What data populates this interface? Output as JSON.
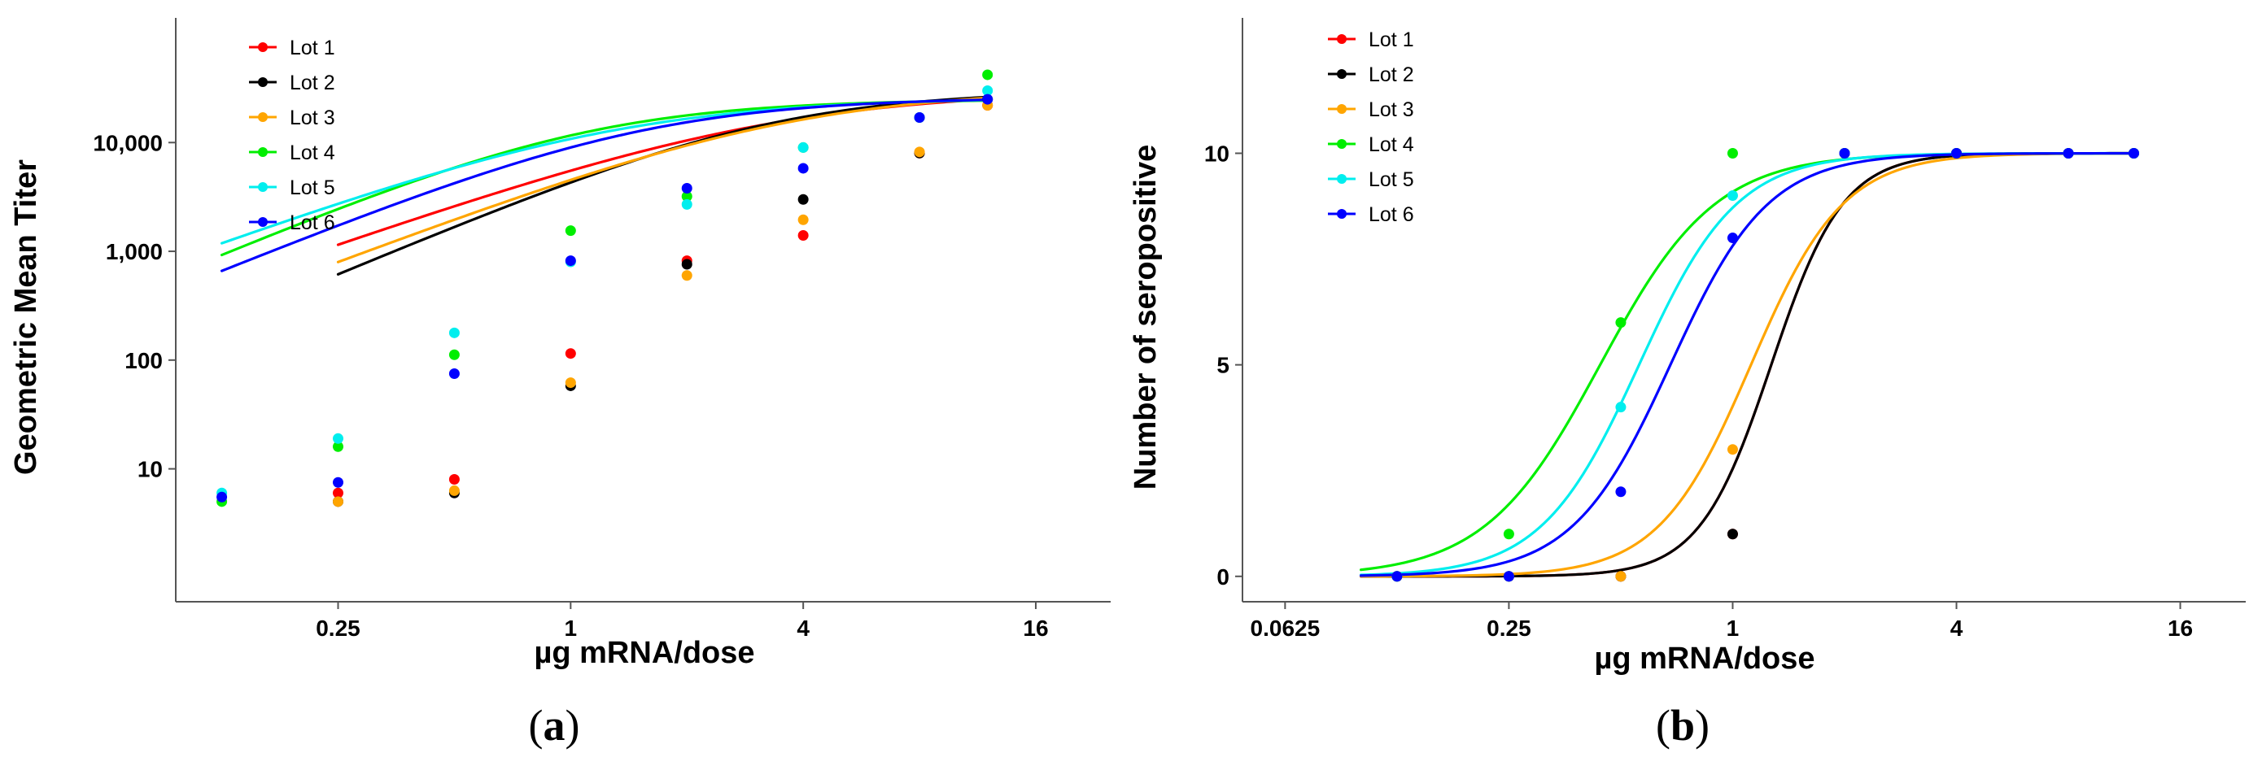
{
  "series_colors": {
    "Lot 1": "#ff0000",
    "Lot 2": "#000000",
    "Lot 3": "#ffa500",
    "Lot 4": "#00ee00",
    "Lot 5": "#00eeee",
    "Lot 6": "#0000ff"
  },
  "chart_data": [
    {
      "panel": "a",
      "panel_label_open": "(",
      "panel_label_letter": "a",
      "panel_label_close": ")",
      "type": "line",
      "xscale": "log2",
      "yscale": "log10",
      "xlabel": "µg mRNA/dose",
      "ylabel": "Geometric Mean Titer",
      "xlim": [
        0.095,
        25
      ],
      "ylim": [
        0.6,
        140000
      ],
      "xticks": [
        0.25,
        1,
        4,
        16
      ],
      "xtick_labels": [
        "0.25",
        "1",
        "4",
        "16"
      ],
      "yticks": [
        10,
        100,
        1000,
        10000
      ],
      "ytick_labels": [
        "10",
        "100",
        "1,000",
        "10,000"
      ],
      "legend": [
        "Lot 1",
        "Lot 2",
        "Lot 3",
        "Lot 4",
        "Lot 5",
        "Lot 6"
      ],
      "series": [
        {
          "name": "Lot 1",
          "points": [
            [
              0.25,
              6
            ],
            [
              0.5,
              8
            ],
            [
              1,
              115
            ],
            [
              2,
              820
            ],
            [
              4,
              1400
            ],
            [
              8,
              8000
            ],
            [
              12,
              22000
            ]
          ],
          "curve": {
            "bottom": 2.5,
            "top": 30000,
            "ec50": 3.3,
            "hill": 1.25
          }
        },
        {
          "name": "Lot 2",
          "points": [
            [
              0.25,
              5
            ],
            [
              0.5,
              6
            ],
            [
              1,
              58
            ],
            [
              2,
              760
            ],
            [
              4,
              3000
            ],
            [
              8,
              8000
            ],
            [
              12,
              25000
            ]
          ],
          "curve": {
            "bottom": 1.8,
            "top": 30000,
            "ec50": 3.3,
            "hill": 1.5
          }
        },
        {
          "name": "Lot 3",
          "points": [
            [
              0.25,
              5
            ],
            [
              0.5,
              6.3
            ],
            [
              1,
              62
            ],
            [
              2,
              600
            ],
            [
              4,
              1950
            ],
            [
              8,
              8200
            ],
            [
              12,
              22000
            ]
          ],
          "curve": {
            "bottom": 2.1,
            "top": 31000,
            "ec50": 3.7,
            "hill": 1.35
          }
        },
        {
          "name": "Lot 4",
          "points": [
            [
              0.125,
              5
            ],
            [
              0.25,
              16
            ],
            [
              0.5,
              112
            ],
            [
              1,
              1550
            ],
            [
              2,
              3200
            ],
            [
              4,
              9000
            ],
            [
              8,
              17000
            ],
            [
              12,
              42000
            ]
          ],
          "curve": {
            "bottom": 3,
            "top": 25000,
            "ec50": 1.1,
            "hill": 1.5
          }
        },
        {
          "name": "Lot 5",
          "points": [
            [
              0.125,
              6
            ],
            [
              0.25,
              19
            ],
            [
              0.5,
              178
            ],
            [
              1,
              800
            ],
            [
              2,
              2700
            ],
            [
              4,
              9000
            ],
            [
              8,
              17000
            ],
            [
              12,
              30000
            ]
          ],
          "curve": {
            "bottom": 4,
            "top": 26000,
            "ec50": 1.3,
            "hill": 1.3
          }
        },
        {
          "name": "Lot 6",
          "points": [
            [
              0.125,
              5.5
            ],
            [
              0.25,
              7.5
            ],
            [
              0.5,
              75
            ],
            [
              1,
              820
            ],
            [
              2,
              3800
            ],
            [
              4,
              5800
            ],
            [
              8,
              17000
            ],
            [
              12,
              25000
            ]
          ],
          "curve": {
            "bottom": 2.5,
            "top": 26000,
            "ec50": 1.55,
            "hill": 1.45
          }
        }
      ]
    },
    {
      "panel": "b",
      "panel_label_open": "(",
      "panel_label_letter": "b",
      "panel_label_close": ")",
      "type": "line",
      "xscale": "log2",
      "yscale": "linear",
      "xlabel": "µg mRNA/dose",
      "ylabel": "Number of seropositive",
      "xlim": [
        0.048,
        24
      ],
      "ylim": [
        -0.6,
        13.2
      ],
      "xticks": [
        0.0625,
        0.25,
        1,
        4,
        16
      ],
      "xtick_labels": [
        "0.0625",
        "0.25",
        "1",
        "4",
        "16"
      ],
      "yticks": [
        0,
        5,
        10
      ],
      "ytick_labels": [
        "0",
        "5",
        "10"
      ],
      "legend": [
        "Lot 1",
        "Lot 2",
        "Lot 3",
        "Lot 4",
        "Lot 5",
        "Lot 6"
      ],
      "series": [
        {
          "name": "Lot 1",
          "points": [
            [
              0.125,
              0
            ],
            [
              0.25,
              0
            ],
            [
              0.5,
              0
            ],
            [
              1,
              1
            ],
            [
              2,
              10
            ],
            [
              4,
              10
            ],
            [
              8,
              10
            ],
            [
              12,
              10
            ]
          ],
          "curve": {
            "top": 10,
            "ec50": 1.27,
            "hill": 4.5,
            "from": 0.1
          }
        },
        {
          "name": "Lot 2",
          "points": [
            [
              0.125,
              0
            ],
            [
              0.25,
              0
            ],
            [
              0.5,
              0
            ],
            [
              1,
              1
            ],
            [
              2,
              10
            ],
            [
              4,
              10
            ],
            [
              8,
              10
            ],
            [
              12,
              10
            ]
          ],
          "curve": {
            "top": 10,
            "ec50": 1.27,
            "hill": 4.5,
            "from": 0.1
          }
        },
        {
          "name": "Lot 3",
          "points": [
            [
              0.125,
              0
            ],
            [
              0.25,
              0
            ],
            [
              0.5,
              0
            ],
            [
              1,
              3
            ],
            [
              2,
              10
            ],
            [
              4,
              10
            ],
            [
              8,
              10
            ],
            [
              12,
              10
            ]
          ],
          "curve": {
            "top": 10,
            "ec50": 1.12,
            "hill": 3.5,
            "from": 0.1
          }
        },
        {
          "name": "Lot 4",
          "points": [
            [
              0.125,
              0
            ],
            [
              0.25,
              1
            ],
            [
              0.5,
              6
            ],
            [
              1,
              10
            ],
            [
              2,
              10
            ],
            [
              4,
              10
            ],
            [
              8,
              10
            ],
            [
              12,
              10
            ]
          ],
          "curve": {
            "top": 10,
            "ec50": 0.44,
            "hill": 2.8,
            "from": 0.1
          }
        },
        {
          "name": "Lot 5",
          "points": [
            [
              0.125,
              0
            ],
            [
              0.25,
              0
            ],
            [
              0.5,
              4
            ],
            [
              1,
              9
            ],
            [
              2,
              10
            ],
            [
              4,
              10
            ],
            [
              8,
              10
            ],
            [
              12,
              10
            ]
          ],
          "curve": {
            "top": 10,
            "ec50": 0.56,
            "hill": 3.3,
            "from": 0.1
          }
        },
        {
          "name": "Lot 6",
          "points": [
            [
              0.125,
              0
            ],
            [
              0.25,
              0
            ],
            [
              0.5,
              2
            ],
            [
              1,
              8
            ],
            [
              2,
              10
            ],
            [
              4,
              10
            ],
            [
              8,
              10
            ],
            [
              12,
              10
            ]
          ],
          "curve": {
            "top": 10,
            "ec50": 0.68,
            "hill": 3.3,
            "from": 0.1
          }
        }
      ]
    }
  ]
}
